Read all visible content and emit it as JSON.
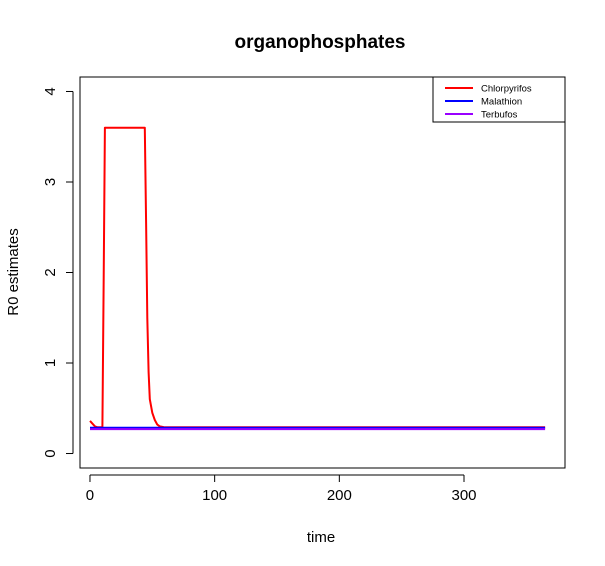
{
  "chart_data": {
    "type": "line",
    "title": "organophosphates",
    "xlabel": "time",
    "ylabel": "R0 estimates",
    "xlim": [
      -8,
      381
    ],
    "ylim": [
      -0.16,
      4.16
    ],
    "x_ticks": [
      0,
      100,
      200,
      300
    ],
    "y_ticks": [
      0,
      1,
      2,
      3,
      4
    ],
    "legend_position": "top-right",
    "series": [
      {
        "name": "Chlorpyrifos",
        "color": "#ff0000",
        "points": [
          [
            0,
            0.36
          ],
          [
            2,
            0.33
          ],
          [
            4,
            0.3
          ],
          [
            6,
            0.29
          ],
          [
            8,
            0.29
          ],
          [
            10,
            0.29
          ],
          [
            11,
            1.95
          ],
          [
            12,
            3.6
          ],
          [
            20,
            3.6
          ],
          [
            30,
            3.6
          ],
          [
            40,
            3.6
          ],
          [
            44,
            3.6
          ],
          [
            45,
            2.55
          ],
          [
            46,
            1.5
          ],
          [
            47,
            0.9
          ],
          [
            48,
            0.6
          ],
          [
            50,
            0.45
          ],
          [
            52,
            0.37
          ],
          [
            54,
            0.32
          ],
          [
            56,
            0.3
          ],
          [
            60,
            0.29
          ],
          [
            100,
            0.29
          ],
          [
            200,
            0.29
          ],
          [
            300,
            0.29
          ],
          [
            365,
            0.29
          ]
        ]
      },
      {
        "name": "Malathion",
        "color": "#0000ff",
        "points": [
          [
            0,
            0.285
          ],
          [
            365,
            0.285
          ]
        ]
      },
      {
        "name": "Terbufos",
        "color": "#9900ff",
        "points": [
          [
            0,
            0.27
          ],
          [
            365,
            0.27
          ]
        ]
      }
    ]
  }
}
